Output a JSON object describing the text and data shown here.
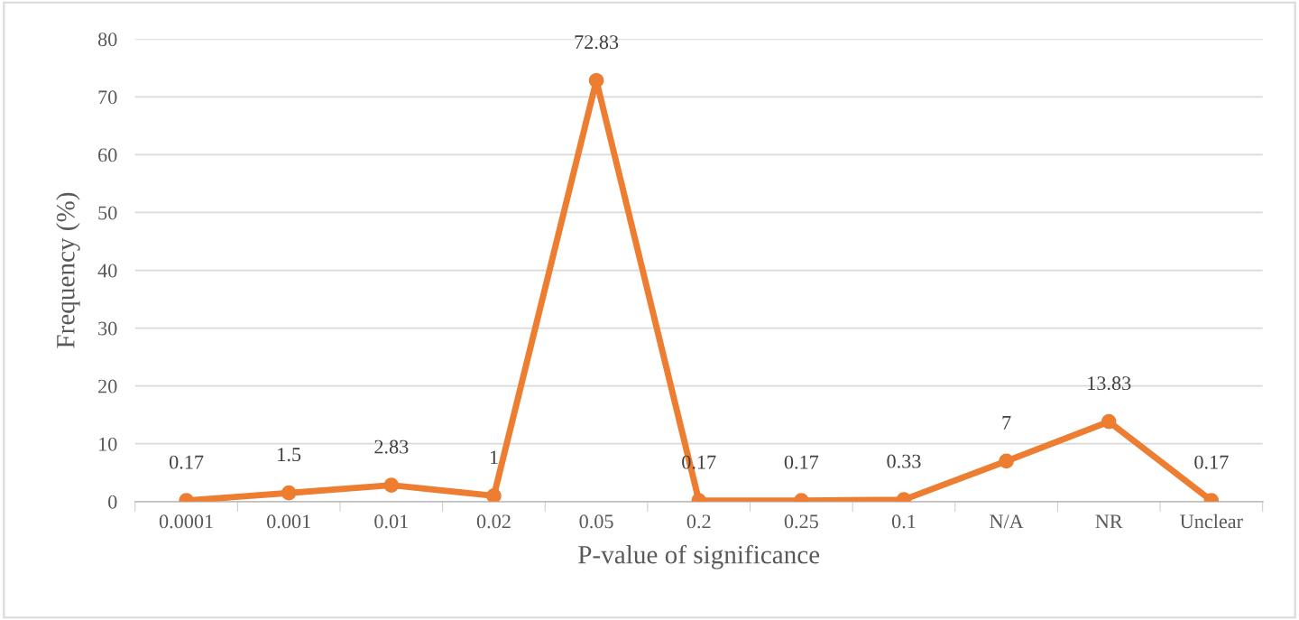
{
  "chart_data": {
    "type": "line",
    "xlabel": "P-value of significance",
    "ylabel": "Frequency (%)",
    "categories": [
      "0.0001",
      "0.001",
      "0.01",
      "0.02",
      "0.05",
      "0.2",
      "0.25",
      "0.1",
      "N/A",
      "NR",
      "Unclear"
    ],
    "series": [
      {
        "color": "#ed7d31",
        "values": [
          0.17,
          1.5,
          2.83,
          1,
          72.83,
          0.17,
          0.17,
          0.33,
          7,
          13.83,
          0.17
        ]
      }
    ],
    "ylim": [
      0,
      80
    ],
    "yticks": [
      0,
      10,
      20,
      30,
      40,
      50,
      60,
      70,
      80
    ],
    "grid": "y",
    "marker": "circle",
    "line_style": "solid",
    "data_labels": true
  }
}
